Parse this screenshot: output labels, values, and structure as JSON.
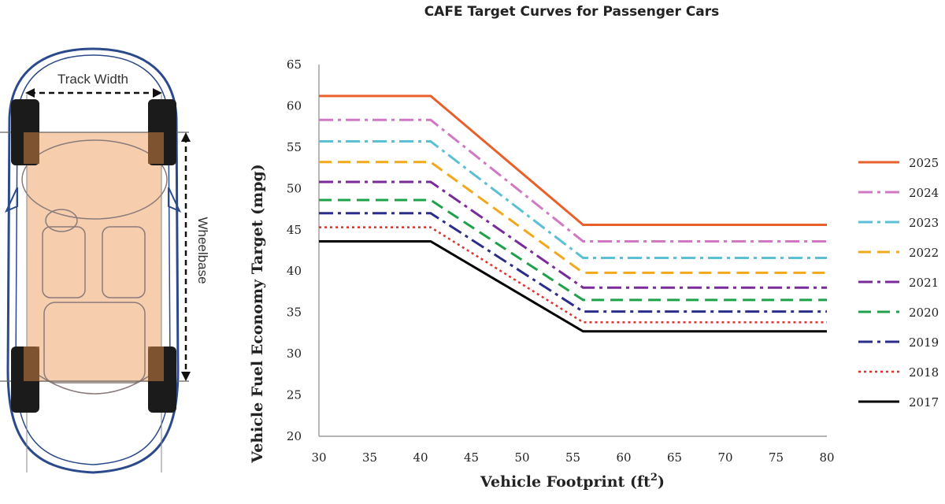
{
  "diagram": {
    "track_width_label": "Track Width",
    "wheelbase_label": "Wheelbase"
  },
  "chart_data": {
    "type": "line",
    "title": "CAFE Target Curves for Passenger Cars",
    "xlabel": "Vehicle Footprint (ft²)",
    "ylabel": "Vehicle Fuel Economy Target (mpg)",
    "xlim": [
      30,
      80
    ],
    "ylim": [
      20,
      65
    ],
    "xticks": [
      30,
      35,
      40,
      45,
      50,
      55,
      60,
      65,
      70,
      75,
      80
    ],
    "yticks": [
      20,
      25,
      30,
      35,
      40,
      45,
      50,
      55,
      60,
      65
    ],
    "grid": false,
    "legend_position": "right",
    "series": [
      {
        "name": "2025",
        "color": "#e8602a",
        "dash": "solid",
        "x": [
          30,
          41,
          56,
          80
        ],
        "y": [
          61.2,
          61.2,
          45.6,
          45.6
        ]
      },
      {
        "name": "2024",
        "color": "#d178c4",
        "dash": "dashdot",
        "x": [
          30,
          41,
          56,
          80
        ],
        "y": [
          58.3,
          58.3,
          43.6,
          43.6
        ]
      },
      {
        "name": "2023",
        "color": "#5bbfd6",
        "dash": "dashdot",
        "x": [
          30,
          41,
          56,
          80
        ],
        "y": [
          55.7,
          55.7,
          41.6,
          41.6
        ]
      },
      {
        "name": "2022",
        "color": "#f2a81d",
        "dash": "dash",
        "x": [
          30,
          41,
          56,
          80
        ],
        "y": [
          53.2,
          53.2,
          39.8,
          39.8
        ]
      },
      {
        "name": "2021",
        "color": "#7a2b9a",
        "dash": "dashdot",
        "x": [
          30,
          41,
          56,
          80
        ],
        "y": [
          50.8,
          50.8,
          38.0,
          38.0
        ]
      },
      {
        "name": "2020",
        "color": "#1fa04a",
        "dash": "dash",
        "x": [
          30,
          41,
          56,
          80
        ],
        "y": [
          48.6,
          48.6,
          36.5,
          36.5
        ]
      },
      {
        "name": "2019",
        "color": "#2a2e8a",
        "dash": "dashdot",
        "x": [
          30,
          41,
          56,
          80
        ],
        "y": [
          47.0,
          47.0,
          35.1,
          35.1
        ]
      },
      {
        "name": "2018",
        "color": "#e0302a",
        "dash": "dot",
        "x": [
          30,
          41,
          56,
          80
        ],
        "y": [
          45.3,
          45.3,
          33.8,
          33.8
        ]
      },
      {
        "name": "2017",
        "color": "#000000",
        "dash": "solid",
        "x": [
          30,
          41,
          56,
          80
        ],
        "y": [
          43.6,
          43.6,
          32.7,
          32.7
        ]
      }
    ]
  }
}
